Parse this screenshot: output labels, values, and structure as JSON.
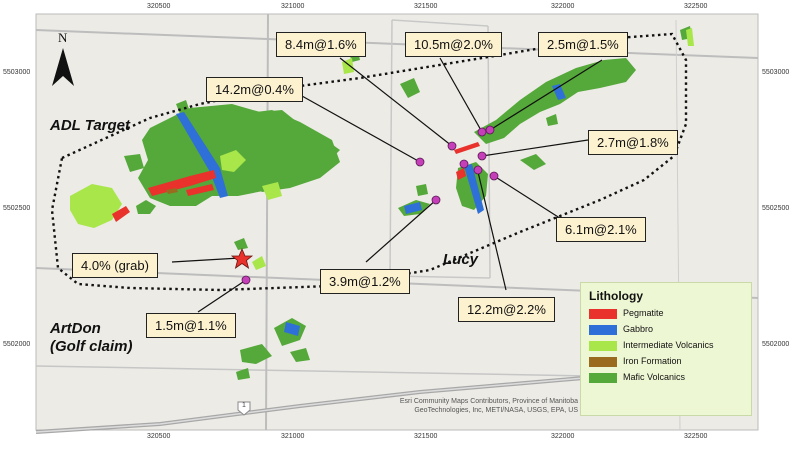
{
  "x_ticks": [
    "320500",
    "321000",
    "321500",
    "322000",
    "322500"
  ],
  "y_ticks_left": [
    "5503000",
    "5502500",
    "5502000"
  ],
  "y_ticks_right": [
    "5503000",
    "5502500",
    "5502000"
  ],
  "north_arrow": {
    "letter": "N"
  },
  "places": {
    "adl_target": "ADL Target",
    "artdon_line1": "ArtDon",
    "artdon_line2": "(Golf claim)",
    "lucy": "Lucy"
  },
  "callouts": [
    "8.4m@1.6%",
    "10.5m@2.0%",
    "2.5m@1.5%",
    "14.2m@0.4%",
    "2.7m@1.8%",
    "6.1m@2.1%",
    "4.0% (grab)",
    "3.9m@1.2%",
    "12.2m@2.2%",
    "1.5m@1.1%"
  ],
  "legend": {
    "title": "Lithology",
    "items": [
      {
        "label": "Pegmatite",
        "color": "#e8322b"
      },
      {
        "label": "Gabbro",
        "color": "#2f6fd8"
      },
      {
        "label": "Intermediate Volcanics",
        "color": "#a8e64a"
      },
      {
        "label": "Iron Formation",
        "color": "#9a6a1e"
      },
      {
        "label": "Mafic Volcanics",
        "color": "#55a83a"
      }
    ]
  },
  "credits": {
    "line1": "Esri Community Maps Contributors, Province of Manitoba",
    "line2": "GeoTechnologies, Inc, METI/NASA, USGS, EPA, US"
  },
  "road_shield": "1",
  "colors": {
    "map_bg": "#ecebe6",
    "road": "#9a9a9a",
    "callout_bg": "#fdf2d0",
    "sample_point": "#c43fb8",
    "star": "#e8322b",
    "outline": "#111111"
  }
}
